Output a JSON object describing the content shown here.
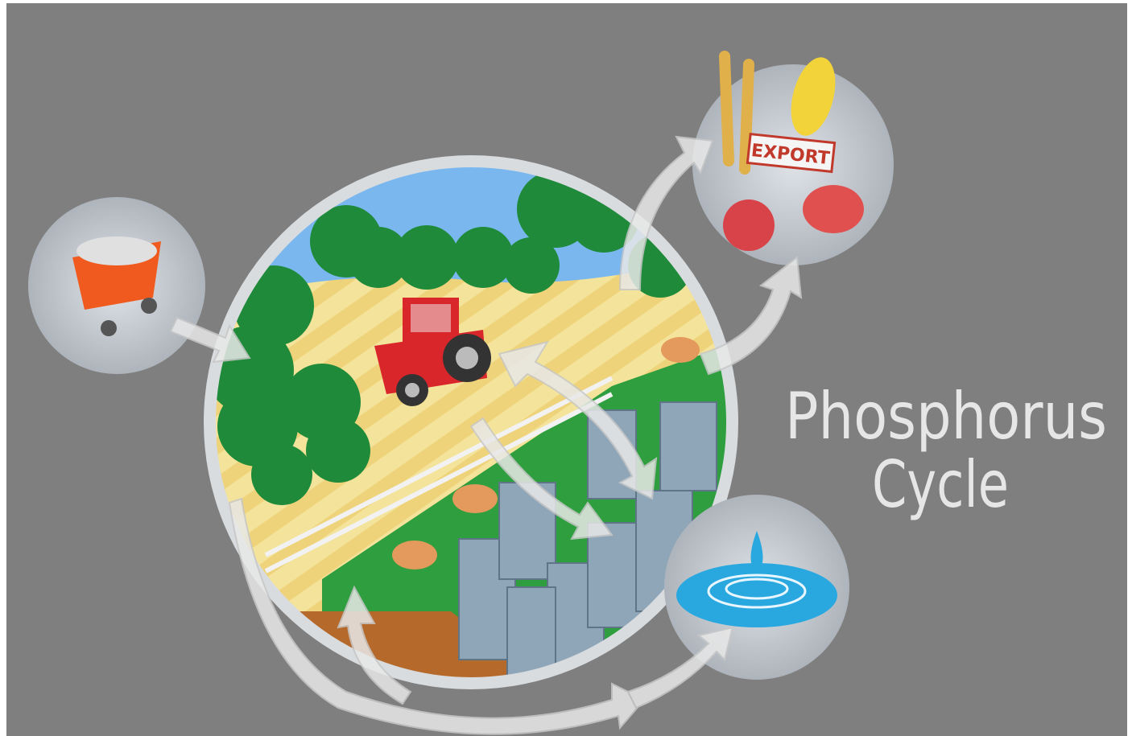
{
  "title": {
    "line1": "Phosphorus",
    "line2": "Cycle"
  },
  "export_label": "EXPORT"
}
